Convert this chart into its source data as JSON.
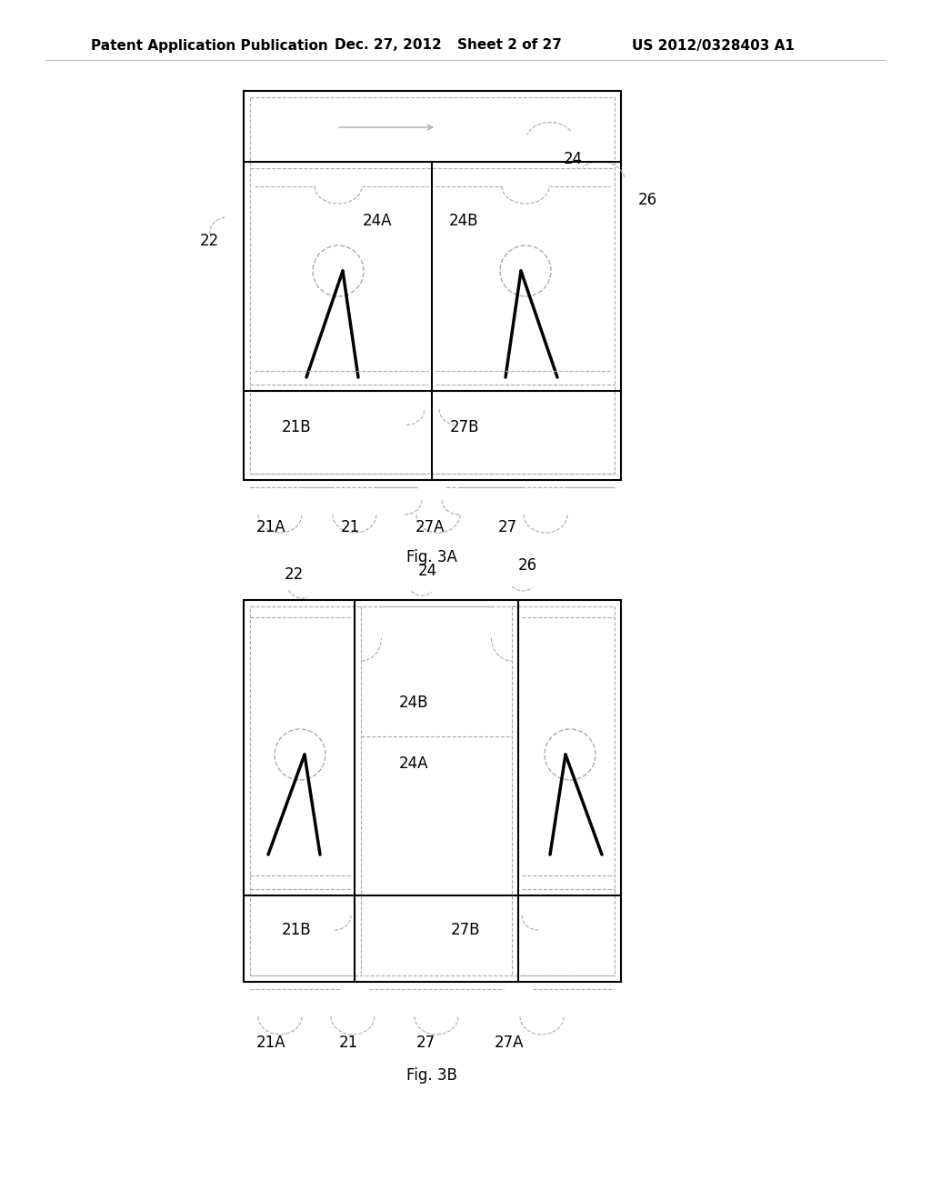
{
  "bg_color": "#ffffff",
  "header_left": "Patent Application Publication",
  "header_mid1": "Dec. 27, 2012",
  "header_mid2": "Sheet 2 of 27",
  "header_right": "US 2012/0328403 A1",
  "fig3a_label": "Fig. 3A",
  "fig3b_label": "Fig. 3B",
  "lc": "#000000",
  "dc": "#aaaaaa",
  "lfs": 12,
  "hfs": 11
}
